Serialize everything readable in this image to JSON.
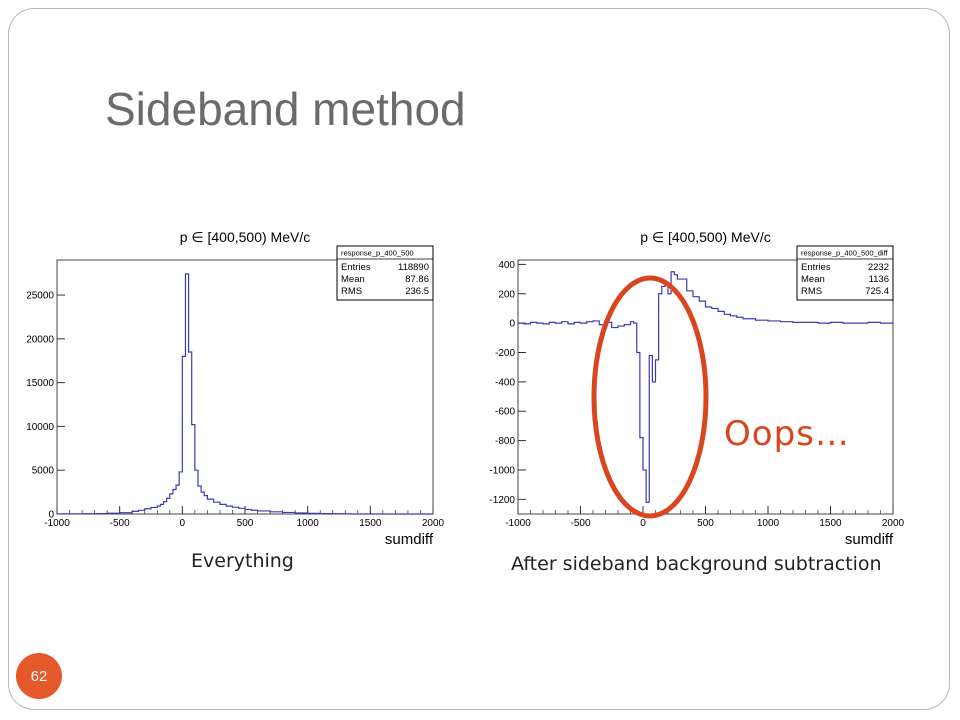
{
  "slide": {
    "title": "Sideband method",
    "page_number": "62",
    "annotation": "Oops…",
    "captions": [
      "Everything",
      "After sideband background subtraction"
    ]
  },
  "colors": {
    "histogram": "#3b3bb5",
    "highlight": "#d9461e",
    "badge": "#e5582a",
    "title": "#6b6b6b"
  },
  "chart_data": [
    {
      "type": "histogram",
      "title": "p ∈ [400,500) MeV/c",
      "xlabel": "sumdiff",
      "ylabel": "",
      "xlim": [
        -1000,
        2000
      ],
      "ylim": [
        0,
        29000
      ],
      "xticks": [
        -1000,
        -500,
        0,
        500,
        1000,
        1500,
        2000
      ],
      "yticks": [
        0,
        5000,
        10000,
        15000,
        20000,
        25000
      ],
      "stats": {
        "name": "response_p_400_500",
        "rows": [
          {
            "label": "Entries",
            "value": "118890"
          },
          {
            "label": "Mean",
            "value": "87.86"
          },
          {
            "label": "RMS",
            "value": "236.5"
          }
        ]
      },
      "x": [
        -1000,
        -900,
        -800,
        -700,
        -600,
        -500,
        -400,
        -350,
        -300,
        -250,
        -200,
        -175,
        -150,
        -125,
        -100,
        -75,
        -50,
        -25,
        0,
        25,
        50,
        75,
        100,
        125,
        150,
        175,
        200,
        250,
        300,
        350,
        400,
        450,
        500,
        550,
        600,
        700,
        800,
        900,
        1000,
        1100,
        1200,
        1300,
        1350
      ],
      "values": [
        10,
        20,
        30,
        50,
        90,
        150,
        300,
        420,
        600,
        750,
        900,
        1100,
        1400,
        1800,
        2300,
        2800,
        3300,
        4800,
        18000,
        27400,
        18500,
        10200,
        5000,
        3200,
        2500,
        2100,
        1700,
        1350,
        1100,
        900,
        780,
        650,
        520,
        430,
        350,
        250,
        180,
        120,
        80,
        50,
        30,
        10,
        0
      ]
    },
    {
      "type": "histogram",
      "title": "p ∈ [400,500) MeV/c",
      "xlabel": "sumdiff",
      "ylabel": "",
      "xlim": [
        -1000,
        2000
      ],
      "ylim": [
        -1300,
        430
      ],
      "xticks": [
        -1000,
        -500,
        0,
        500,
        1000,
        1500,
        2000
      ],
      "yticks": [
        -1200,
        -1000,
        -800,
        -600,
        -400,
        -200,
        0,
        200,
        400
      ],
      "stats": {
        "name": "response_p_400_500_diff",
        "rows": [
          {
            "label": "Entries",
            "value": "2232"
          },
          {
            "label": "Mean",
            "value": "1136"
          },
          {
            "label": "RMS",
            "value": "725.4"
          }
        ]
      },
      "x": [
        -1000,
        -950,
        -900,
        -850,
        -800,
        -750,
        -700,
        -650,
        -600,
        -550,
        -500,
        -450,
        -400,
        -350,
        -300,
        -250,
        -200,
        -150,
        -100,
        -75,
        -50,
        -25,
        0,
        25,
        50,
        75,
        100,
        125,
        150,
        175,
        200,
        225,
        250,
        275,
        300,
        350,
        400,
        450,
        500,
        550,
        600,
        650,
        700,
        750,
        800,
        850,
        900,
        950,
        1000,
        1100,
        1200,
        1300,
        1400,
        1500,
        1600,
        1700,
        1800,
        1900
      ],
      "values": [
        0,
        -5,
        5,
        0,
        -5,
        5,
        0,
        10,
        -5,
        5,
        0,
        10,
        15,
        -10,
        5,
        -30,
        -20,
        -10,
        10,
        0,
        -200,
        -780,
        -1000,
        -1220,
        -220,
        -400,
        -250,
        200,
        250,
        260,
        200,
        350,
        330,
        300,
        300,
        220,
        180,
        150,
        110,
        100,
        80,
        60,
        50,
        40,
        30,
        30,
        20,
        20,
        15,
        10,
        5,
        5,
        0,
        5,
        0,
        0,
        5,
        0
      ]
    }
  ]
}
